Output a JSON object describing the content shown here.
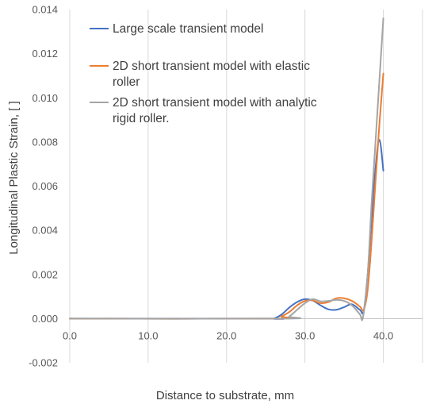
{
  "chart_data": {
    "type": "line",
    "title": "",
    "xlabel": "Distance to substrate, mm",
    "ylabel": "Longitudinal Plastic Strain, [ ]",
    "xlim": [
      0,
      45
    ],
    "ylim": [
      -0.002,
      0.014
    ],
    "x_ticks": [
      0,
      10,
      20,
      30,
      40
    ],
    "x_tick_labels": [
      "0.0",
      "10.0",
      "20.0",
      "30.0",
      "40.0"
    ],
    "y_ticks": [
      -0.002,
      0,
      0.002,
      0.004,
      0.006,
      0.008,
      0.01,
      0.012,
      0.014
    ],
    "y_tick_labels": [
      "-0.002",
      "0.000",
      "0.002",
      "0.004",
      "0.006",
      "0.008",
      "0.010",
      "0.012",
      "0.014"
    ],
    "grid": "vertical",
    "legend_position": "top-left",
    "series": [
      {
        "name": "Large scale transient model",
        "color": "#4472C4",
        "points": [
          [
            0,
            0
          ],
          [
            25,
            0
          ],
          [
            26,
            0
          ],
          [
            27,
            0.00018
          ],
          [
            28,
            0.0005
          ],
          [
            29,
            0.00075
          ],
          [
            30,
            0.00088
          ],
          [
            31,
            0.00082
          ],
          [
            32,
            0.0006
          ],
          [
            33,
            0.00042
          ],
          [
            34,
            0.0004
          ],
          [
            35,
            0.00052
          ],
          [
            36,
            0.00065
          ],
          [
            37,
            0.0004
          ],
          [
            37.5,
            0.00035
          ],
          [
            38,
            0.002
          ],
          [
            38.5,
            0.0045
          ],
          [
            39,
            0.0068
          ],
          [
            39.5,
            0.0081
          ],
          [
            40,
            0.0067
          ]
        ]
      },
      {
        "name": "2D short transient model with elastic roller",
        "color": "#ED7D31",
        "points": [
          [
            0,
            0
          ],
          [
            26,
            0
          ],
          [
            27,
            0.0001
          ],
          [
            28,
            0.0003
          ],
          [
            29,
            0.0006
          ],
          [
            30,
            0.0008
          ],
          [
            31,
            0.00082
          ],
          [
            32,
            0.0007
          ],
          [
            33,
            0.00075
          ],
          [
            34,
            0.00092
          ],
          [
            35,
            0.00092
          ],
          [
            36,
            0.0008
          ],
          [
            37,
            0.00055
          ],
          [
            37.5,
            0.0004
          ],
          [
            38,
            0.0013
          ],
          [
            38.5,
            0.0035
          ],
          [
            39,
            0.0062
          ],
          [
            39.5,
            0.0088
          ],
          [
            40,
            0.0111
          ]
        ]
      },
      {
        "name": "2D short transient model with analytic rigid roller.",
        "color": "#A5A5A5",
        "points": [
          [
            0,
            0
          ],
          [
            27,
            0
          ],
          [
            28,
            0.0001
          ],
          [
            29,
            0.0004
          ],
          [
            30,
            0.0007
          ],
          [
            31,
            0.00088
          ],
          [
            32,
            0.00078
          ],
          [
            33,
            0.0008
          ],
          [
            34,
            0.00085
          ],
          [
            35,
            0.0008
          ],
          [
            36,
            0.0006
          ],
          [
            37,
            0.0002
          ],
          [
            37.4,
            5e-05
          ],
          [
            38,
            0.002
          ],
          [
            38.5,
            0.0052
          ],
          [
            39,
            0.008
          ],
          [
            39.5,
            0.0108
          ],
          [
            40,
            0.0136
          ]
        ]
      }
    ]
  }
}
